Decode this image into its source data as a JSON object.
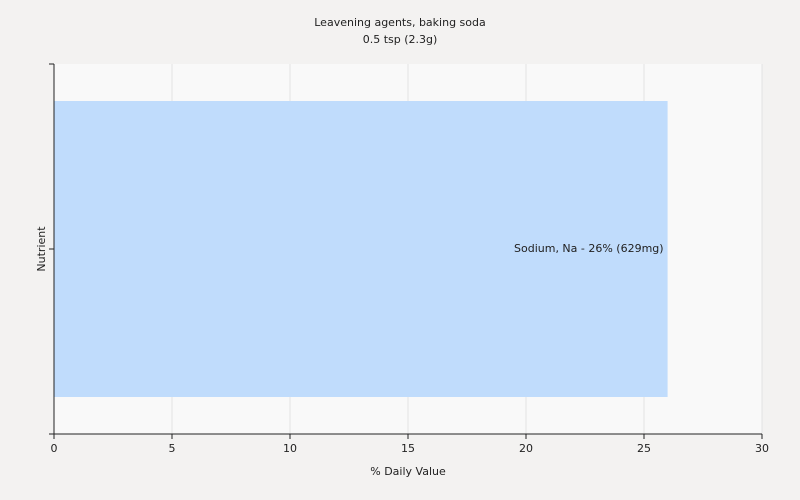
{
  "chart_data": {
    "type": "bar",
    "orientation": "horizontal",
    "title": "Leavening agents, baking soda",
    "subtitle": "0.5 tsp (2.3g)",
    "xlabel": "% Daily Value",
    "ylabel": "Nutrient",
    "categories": [
      null
    ],
    "values": [
      26
    ],
    "value_labels": [
      "Sodium, Na - 26% (629mg)"
    ],
    "color": "#c0dcfc",
    "xlim": [
      0,
      30
    ],
    "xticks": [
      0,
      5,
      10,
      15,
      20,
      25,
      30
    ],
    "grid": true
  }
}
